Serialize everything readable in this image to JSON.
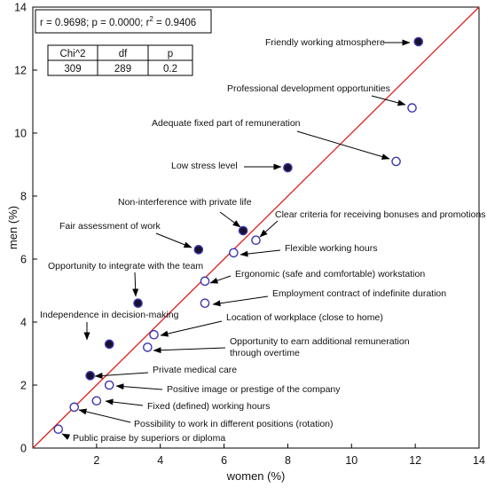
{
  "chart_data": {
    "type": "scatter",
    "xlabel": "women (%)",
    "ylabel": "men (%)",
    "xlim": [
      0,
      14
    ],
    "ylim": [
      0,
      14
    ],
    "xticks": [
      "2",
      "4",
      "6",
      "8",
      "10",
      "12",
      "14"
    ],
    "yticks": [
      "0",
      "2",
      "4",
      "6",
      "8",
      "10",
      "12",
      "14"
    ],
    "grid": false,
    "reference_line": {
      "from": [
        0,
        0
      ],
      "to": [
        14,
        14
      ],
      "color": "#e0201b"
    },
    "stats": {
      "line1": "r = 0.9698; p = 0.0000; r",
      "sup": "2",
      "line1_end": " = 0.9406",
      "table_headers": [
        "Chi^2",
        "df",
        "p"
      ],
      "table_values": [
        "309",
        "289",
        "0.2"
      ]
    },
    "marker_colors": {
      "filled_fill": "#17122e",
      "edge": "#3d36b0",
      "open_fill": "#ffffff"
    },
    "points": [
      {
        "label": "Friendly working atmosphere",
        "x": 12.1,
        "y": 12.9,
        "filled": true
      },
      {
        "label": "Professional development opportunities",
        "x": 11.9,
        "y": 10.8,
        "filled": false
      },
      {
        "label": "Adequate fixed part of remuneration",
        "x": 11.4,
        "y": 9.1,
        "filled": false
      },
      {
        "label": "Low stress level",
        "x": 8.0,
        "y": 8.9,
        "filled": true
      },
      {
        "label": "Non-interference with private life",
        "x": 6.6,
        "y": 6.9,
        "filled": true
      },
      {
        "label": "Clear criteria for receiving bonuses and promotions",
        "x": 7.0,
        "y": 6.6,
        "filled": false
      },
      {
        "label": "Fair assessment of work",
        "x": 5.2,
        "y": 6.3,
        "filled": true
      },
      {
        "label": "Flexible working hours",
        "x": 6.3,
        "y": 6.2,
        "filled": false
      },
      {
        "label": "Opportunity to integrate with the team",
        "x": 3.3,
        "y": 4.6,
        "filled": true
      },
      {
        "label": "Ergonomic (safe and comfortable) workstation",
        "x": 5.4,
        "y": 5.3,
        "filled": false
      },
      {
        "label": "Employment contract of indefinite duration",
        "x": 5.4,
        "y": 4.6,
        "filled": false
      },
      {
        "label": "Independence in decision-making",
        "x": 2.4,
        "y": 3.3,
        "filled": true
      },
      {
        "label": "Location of workplace (close to home)",
        "x": 3.8,
        "y": 3.6,
        "filled": false
      },
      {
        "label": "Opportunity to earn additional remuneration through overtime",
        "x": 3.6,
        "y": 3.2,
        "filled": false
      },
      {
        "label": "Private medical care",
        "x": 1.8,
        "y": 2.3,
        "filled": true
      },
      {
        "label": "Positive image or prestige of the company",
        "x": 2.4,
        "y": 2.0,
        "filled": false
      },
      {
        "label": "Fixed (defined) working hours",
        "x": 2.0,
        "y": 1.5,
        "filled": false
      },
      {
        "label": "Possibility to work in different positions (rotation)",
        "x": 1.3,
        "y": 1.3,
        "filled": false
      },
      {
        "label": "Public praise by superiors or diploma",
        "x": 0.8,
        "y": 0.6,
        "filled": false
      }
    ]
  }
}
